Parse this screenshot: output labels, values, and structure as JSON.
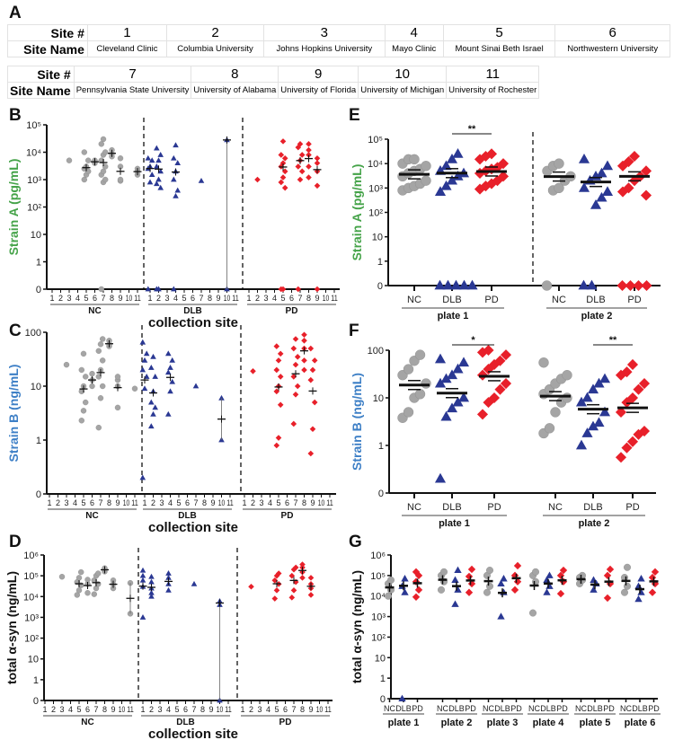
{
  "panel_labels": {
    "a": "A",
    "b": "B",
    "c": "C",
    "d": "D",
    "e": "E",
    "f": "F",
    "g": "G"
  },
  "site_table": {
    "row_header_num": "Site #",
    "row_header_name": "Site Name",
    "rows": [
      [
        {
          "num": "1",
          "name": "Cleveland Clinic"
        },
        {
          "num": "2",
          "name": "Columbia University"
        },
        {
          "num": "3",
          "name": "Johns Hopkins University"
        },
        {
          "num": "4",
          "name": "Mayo Clinic"
        },
        {
          "num": "5",
          "name": "Mount Sinai Beth Israel"
        },
        {
          "num": "6",
          "name": "Northwestern University"
        }
      ],
      [
        {
          "num": "7",
          "name": "Pennsylvania State University"
        },
        {
          "num": "8",
          "name": "University of Alabama"
        },
        {
          "num": "9",
          "name": "University of Florida"
        },
        {
          "num": "10",
          "name": "University of Michigan"
        },
        {
          "num": "11",
          "name": "University of Rochester"
        }
      ]
    ]
  },
  "colors": {
    "NC": "#a5a5a5",
    "DLB": "#2a3893",
    "PD": "#e8202a",
    "strainA": "#45a349",
    "strainB": "#3d7fc6"
  },
  "chart_data": [
    {
      "id": "B",
      "type": "scatter",
      "ylabel": "Strain A (pg/mL)",
      "ylabel_color": "strainA",
      "xlabel": "collection site",
      "yticks": [
        "0",
        "1",
        "10",
        "10²",
        "10³",
        "10⁴",
        "10⁵"
      ],
      "site_labels": [
        "1",
        "2",
        "3",
        "4",
        "5",
        "6",
        "7",
        "8",
        "9",
        "10",
        "11"
      ],
      "groups": [
        {
          "name": "NC",
          "sites": {
            "3": [
              5000
            ],
            "5": [
              1000,
              1500,
              2000,
              2500,
              3000,
              5000,
              10000
            ],
            "6": [
              4000,
              5000
            ],
            "7": [
              0,
              800,
              1000,
              1500,
              2000,
              3000,
              5000,
              8000,
              10000,
              20000,
              30000
            ],
            "8": [
              7000,
              9000,
              12000
            ],
            "9": [
              900,
              1000,
              3000,
              6000
            ],
            "11": [
              1500,
              2000,
              2500
            ]
          }
        },
        {
          "name": "DLB",
          "sites": {
            "1": [
              0,
              800,
              1500,
              2500,
              3000,
              5000,
              6000
            ],
            "2": [
              0,
              0,
              500,
              700,
              1000,
              2000,
              3000,
              5000,
              8000,
              14000
            ],
            "4": [
              0,
              250,
              400,
              1000,
              2000,
              4000,
              6000,
              18000
            ],
            "7": [
              900
            ],
            "10": [
              0,
              28000
            ]
          }
        },
        {
          "name": "PD",
          "sites": {
            "2": [
              1000
            ],
            "5": [
              0,
              0,
              500,
              800,
              1200,
              2000,
              3000,
              4000,
              6000,
              8000,
              25000
            ],
            "7": [
              0,
              1000,
              2000,
              3000,
              5000,
              8000,
              15000,
              20000
            ],
            "8": [
              1200,
              3000,
              8000,
              12000,
              20000
            ],
            "9": [
              0,
              600,
              2000,
              4000,
              6000
            ]
          }
        }
      ]
    },
    {
      "id": "C",
      "type": "scatter",
      "ylabel": "Strain B (ng/mL)",
      "ylabel_color": "strainB",
      "xlabel": "collection site",
      "yticks": [
        "0",
        "1",
        "10",
        "100"
      ],
      "site_labels": [
        "1",
        "2",
        "3",
        "4",
        "5",
        "6",
        "7",
        "8",
        "9",
        "10",
        "11"
      ],
      "groups": [
        {
          "name": "NC",
          "sites": {
            "3": [
              25
            ],
            "5": [
              2.3,
              3.5,
              5,
              8,
              10,
              15,
              20,
              40
            ],
            "6": [
              10,
              13,
              17
            ],
            "7": [
              1.7,
              6,
              10,
              15,
              20,
              30,
              45,
              60,
              75
            ],
            "8": [
              55,
              60,
              70
            ],
            "9": [
              4,
              10,
              13,
              15
            ],
            "11": [
              9
            ]
          }
        },
        {
          "name": "DLB",
          "sites": {
            "1": [
              0.3,
              9,
              15,
              20,
              30,
              40,
              65
            ],
            "2": [
              1.8,
              3,
              4,
              5,
              8,
              15,
              22,
              35
            ],
            "4": [
              3,
              8,
              12,
              18,
              22,
              30,
              40
            ],
            "7": [
              10
            ],
            "10": [
              1,
              6
            ]
          }
        },
        {
          "name": "PD",
          "sites": {
            "2": [
              19
            ],
            "5": [
              0.9,
              1.1,
              4.5,
              8,
              10,
              15,
              20,
              30,
              40,
              55
            ],
            "7": [
              2,
              7,
              10,
              15,
              25,
              35,
              50,
              75
            ],
            "8": [
              20,
              30,
              50,
              70,
              90
            ],
            "9": [
              0.75,
              1.6,
              5,
              13,
              20,
              30,
              50
            ]
          }
        }
      ]
    },
    {
      "id": "D",
      "type": "scatter",
      "ylabel": "total α-syn (ng/mL)",
      "ylabel_color": "",
      "xlabel": "collection site",
      "yticks": [
        "0",
        "1",
        "10",
        "10²",
        "10³",
        "10⁴",
        "10⁵",
        "10⁶"
      ],
      "site_labels": [
        "1",
        "2",
        "3",
        "4",
        "5",
        "6",
        "7",
        "8",
        "9",
        "10",
        "11"
      ],
      "groups": [
        {
          "name": "NC",
          "sites": {
            "3": [
              90000
            ],
            "5": [
              12000,
              20000,
              35000,
              50000,
              80000,
              150000
            ],
            "6": [
              15000,
              40000,
              65000
            ],
            "7": [
              13000,
              25000,
              40000,
              60000,
              100000,
              130000
            ],
            "8": [
              160000,
              200000,
              230000
            ],
            "9": [
              25000,
              40000,
              60000
            ],
            "11": [
              1500,
              45000
            ]
          }
        },
        {
          "name": "DLB",
          "sites": {
            "1": [
              1000,
              30000,
              60000,
              100000,
              180000
            ],
            "2": [
              10000,
              15000,
              25000,
              50000,
              90000
            ],
            "4": [
              20000,
              40000,
              80000,
              130000
            ],
            "7": [
              40000
            ],
            "10": [
              0,
              4000,
              6000
            ]
          }
        },
        {
          "name": "PD",
          "sites": {
            "2": [
              30000
            ],
            "5": [
              8000,
              20000,
              40000,
              60000,
              100000,
              130000
            ],
            "7": [
              9000,
              20000,
              50000,
              100000,
              200000,
              250000
            ],
            "8": [
              80000,
              150000,
              250000,
              350000
            ],
            "9": [
              12000,
              25000,
              40000,
              80000
            ]
          }
        }
      ]
    },
    {
      "id": "E",
      "type": "scatter",
      "ylabel": "Strain A (pg/mL)",
      "ylabel_color": "strainA",
      "yticks": [
        "0",
        "1",
        "10",
        "10²",
        "10³",
        "10⁴",
        "10⁵"
      ],
      "plates": [
        {
          "label": "plate 1",
          "groups": {
            "NC": [
              800,
              1000,
              1200,
              1500,
              2000,
              3000,
              4000,
              5000,
              6000,
              8000,
              10000,
              15000,
              15000
            ],
            "DLB": [
              0,
              0,
              0,
              0,
              0,
              700,
              1200,
              2000,
              3000,
              4000,
              5000,
              8000,
              15000,
              25000
            ],
            "PD": [
              900,
              1200,
              1500,
              2000,
              3000,
              4000,
              5000,
              6000,
              7000,
              10000,
              15000,
              20000,
              25000
            ]
          }
        },
        {
          "label": "plate 2",
          "groups": {
            "NC": [
              0,
              800,
              1000,
              2000,
              3000,
              5000,
              8000,
              10000
            ],
            "DLB": [
              0,
              0,
              200,
              400,
              700,
              1000,
              2000,
              3000,
              4000,
              8000,
              15000
            ],
            "PD": [
              0,
              0,
              0,
              0,
              500,
              700,
              1000,
              2000,
              3000,
              5000,
              8000,
              12000,
              20000
            ]
          }
        }
      ],
      "categories": [
        "NC",
        "DLB",
        "PD"
      ],
      "significance": [
        {
          "plate": 0,
          "from": "DLB",
          "to": "PD",
          "label": "**"
        }
      ]
    },
    {
      "id": "F",
      "type": "scatter",
      "ylabel": "Strain B (ng/mL)",
      "ylabel_color": "strainB",
      "yticks": [
        "0",
        "1",
        "10",
        "100"
      ],
      "plates": [
        {
          "label": "plate 1",
          "groups": {
            "NC": [
              3.8,
              5,
              10,
              12,
              20,
              30,
              40,
              60,
              80
            ],
            "DLB": [
              0.3,
              4,
              6,
              8,
              10,
              20,
              25,
              30,
              40,
              55,
              65
            ],
            "PD": [
              4.5,
              8,
              10,
              15,
              20,
              30,
              40,
              50,
              60,
              80,
              90,
              100
            ]
          }
        },
        {
          "label": "plate 2",
          "groups": {
            "NC": [
              1.8,
              2.3,
              5,
              8,
              10,
              12,
              15,
              20,
              25,
              30,
              55
            ],
            "DLB": [
              1,
              1.8,
              2.5,
              3,
              5,
              8,
              10,
              15,
              20,
              25
            ],
            "PD": [
              0.75,
              0.95,
              1.2,
              1.7,
              2,
              5,
              8,
              10,
              15,
              20,
              30,
              35,
              50
            ]
          }
        }
      ],
      "categories": [
        "NC",
        "DLB",
        "PD"
      ],
      "significance": [
        {
          "plate": 0,
          "from": "DLB",
          "to": "PD",
          "label": "*"
        },
        {
          "plate": 1,
          "from": "DLB",
          "to": "PD",
          "label": "**"
        }
      ]
    },
    {
      "id": "G",
      "type": "scatter",
      "ylabel": "total α-syn (ng/mL)",
      "ylabel_color": "",
      "yticks": [
        "0",
        "1",
        "10",
        "10²",
        "10³",
        "10⁴",
        "10⁵",
        "10⁶"
      ],
      "categories": [
        "NC",
        "DLB",
        "PD"
      ],
      "plates": [
        {
          "label": "plate 1",
          "groups": {
            "NC": [
              10000,
              20000,
              40000,
              60000
            ],
            "DLB": [
              0,
              15000,
              30000,
              70000
            ],
            "PD": [
              9000,
              20000,
              50000,
              100000,
              150000
            ]
          }
        },
        {
          "label": "plate 2",
          "groups": {
            "NC": [
              20000,
              50000,
              100000,
              150000
            ],
            "DLB": [
              4000,
              20000,
              60000,
              180000
            ],
            "PD": [
              15000,
              40000,
              90000,
              200000
            ]
          }
        },
        {
          "label": "plate 3",
          "groups": {
            "NC": [
              15000,
              30000,
              100000,
              180000
            ],
            "DLB": [
              1000,
              15000,
              40000,
              70000
            ],
            "PD": [
              20000,
              50000,
              100000,
              300000
            ]
          }
        },
        {
          "label": "plate 4",
          "groups": {
            "NC": [
              1500,
              50000,
              100000,
              150000
            ],
            "DLB": [
              15000,
              30000,
              60000,
              100000
            ],
            "PD": [
              13000,
              50000,
              100000,
              180000
            ]
          }
        },
        {
          "label": "plate 5",
          "groups": {
            "NC": [
              40000,
              60000,
              80000,
              100000
            ],
            "DLB": [
              20000,
              40000,
              60000
            ],
            "PD": [
              8000,
              40000,
              100000,
              200000
            ]
          }
        },
        {
          "label": "plate 6",
          "groups": {
            "NC": [
              15000,
              30000,
              80000,
              250000
            ],
            "DLB": [
              7000,
              15000,
              30000,
              70000
            ],
            "PD": [
              15000,
              40000,
              80000,
              150000
            ]
          }
        }
      ]
    }
  ]
}
